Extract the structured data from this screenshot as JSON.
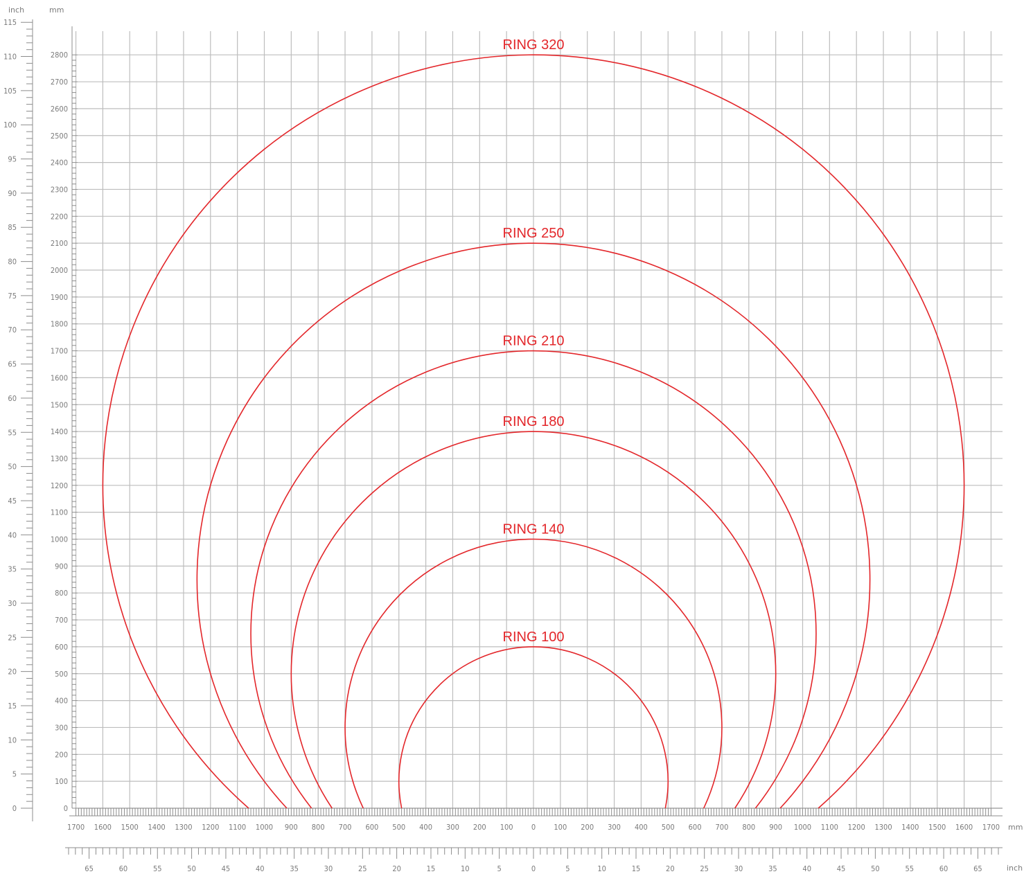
{
  "chart_data": {
    "type": "line",
    "units": {
      "mm": "mm",
      "inch": "inch"
    },
    "x_range_mm": [
      -1700,
      1700
    ],
    "y_range_mm": [
      0,
      2800
    ],
    "x_ticks_mm": [
      1700,
      1600,
      1500,
      1400,
      1300,
      1200,
      1100,
      1000,
      900,
      800,
      700,
      600,
      500,
      400,
      300,
      200,
      100,
      0,
      100,
      200,
      300,
      400,
      500,
      600,
      700,
      800,
      900,
      1000,
      1100,
      1200,
      1300,
      1400,
      1500,
      1600,
      1700
    ],
    "x_ticks_inch": [
      65,
      60,
      55,
      50,
      45,
      40,
      35,
      30,
      25,
      20,
      15,
      10,
      5,
      0,
      5,
      10,
      15,
      20,
      25,
      30,
      35,
      40,
      45,
      50,
      55,
      60,
      65
    ],
    "y_ticks_mm": [
      0,
      100,
      200,
      300,
      400,
      500,
      600,
      700,
      800,
      900,
      1000,
      1100,
      1200,
      1300,
      1400,
      1500,
      1600,
      1700,
      1800,
      1900,
      2000,
      2100,
      2200,
      2300,
      2400,
      2500,
      2600,
      2700,
      2800
    ],
    "y_ticks_inch": [
      0,
      5,
      10,
      15,
      20,
      25,
      30,
      35,
      40,
      45,
      50,
      55,
      60,
      65,
      70,
      75,
      80,
      85,
      90,
      95,
      100,
      105,
      110,
      115
    ],
    "grid": true,
    "series": [
      {
        "name": "RING 320",
        "radius_mm": 1600,
        "center_height_mm": 1200,
        "top_mm": 2800,
        "color": "#e3262a"
      },
      {
        "name": "RING 250",
        "radius_mm": 1250,
        "center_height_mm": 850,
        "top_mm": 2100,
        "color": "#e3262a"
      },
      {
        "name": "RING 210",
        "radius_mm": 1050,
        "center_height_mm": 650,
        "top_mm": 1700,
        "color": "#e3262a"
      },
      {
        "name": "RING 180",
        "radius_mm": 900,
        "center_height_mm": 500,
        "top_mm": 1400,
        "color": "#e3262a"
      },
      {
        "name": "RING 140",
        "radius_mm": 700,
        "center_height_mm": 300,
        "top_mm": 1000,
        "color": "#e3262a"
      },
      {
        "name": "RING 100",
        "radius_mm": 500,
        "center_height_mm": 100,
        "top_mm": 600,
        "color": "#e3262a"
      }
    ]
  }
}
